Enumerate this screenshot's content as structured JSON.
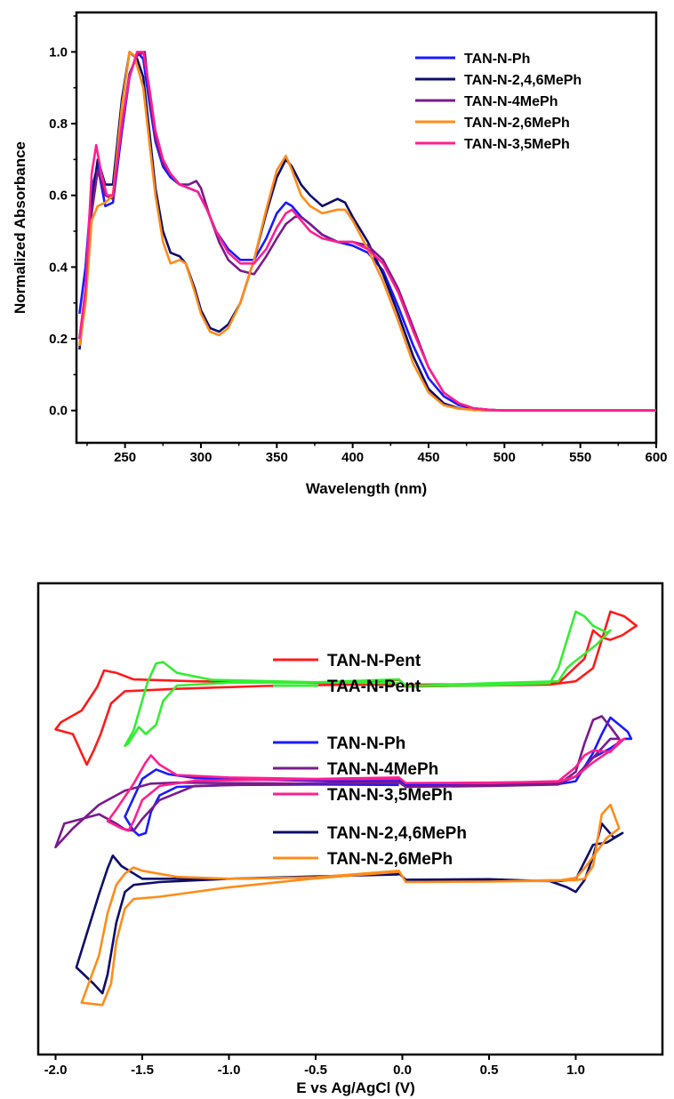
{
  "chart_data": [
    {
      "type": "line",
      "title": "",
      "xlabel": "Wavelength (nm)",
      "ylabel": "Normalized Absorbance",
      "xlim": [
        218,
        600
      ],
      "ylim": [
        -0.09,
        1.11
      ],
      "xticks": [
        250,
        300,
        350,
        400,
        450,
        500,
        550,
        600
      ],
      "xtick_labels": [
        "250",
        "300",
        "350",
        "400",
        "450",
        "500",
        "550",
        "600"
      ],
      "yticks": [
        0.0,
        0.2,
        0.4,
        0.6,
        0.8,
        1.0
      ],
      "ytick_labels": [
        "0.0",
        "0.2",
        "0.4",
        "0.6",
        "0.8",
        "1.0"
      ],
      "grid": false,
      "legend_position": "top-right",
      "series": [
        {
          "name": "TAN-N-Ph",
          "color": "#1a1aff",
          "x": [
            220,
            224,
            228,
            232,
            237,
            242,
            248,
            253,
            258,
            262,
            266,
            270,
            275,
            280,
            286,
            292,
            298,
            304,
            310,
            318,
            326,
            335,
            343,
            350,
            356,
            360,
            366,
            372,
            380,
            390,
            400,
            410,
            420,
            430,
            440,
            450,
            460,
            470,
            480,
            490,
            500,
            520,
            560,
            600
          ],
          "y": [
            0.27,
            0.4,
            0.62,
            0.68,
            0.57,
            0.58,
            0.78,
            0.93,
            1.0,
            0.98,
            0.86,
            0.75,
            0.68,
            0.65,
            0.63,
            0.62,
            0.61,
            0.56,
            0.5,
            0.45,
            0.42,
            0.42,
            0.48,
            0.55,
            0.58,
            0.57,
            0.54,
            0.52,
            0.49,
            0.47,
            0.46,
            0.44,
            0.39,
            0.29,
            0.18,
            0.09,
            0.04,
            0.015,
            0.006,
            0.002,
            0.0,
            0.0,
            0.0,
            0.0
          ]
        },
        {
          "name": "TAN-N-2,4,6MePh",
          "color": "#0d0d6b",
          "x": [
            220,
            224,
            228,
            232,
            237,
            242,
            248,
            253,
            258,
            262,
            266,
            270,
            275,
            280,
            286,
            290,
            296,
            300,
            306,
            312,
            318,
            326,
            335,
            343,
            350,
            356,
            360,
            366,
            372,
            380,
            390,
            395,
            400,
            410,
            420,
            430,
            440,
            450,
            460,
            470,
            480,
            490,
            500,
            520,
            560,
            600
          ],
          "y": [
            0.17,
            0.32,
            0.58,
            0.7,
            0.63,
            0.63,
            0.87,
            1.0,
            0.98,
            0.93,
            0.78,
            0.62,
            0.5,
            0.44,
            0.43,
            0.41,
            0.34,
            0.28,
            0.23,
            0.22,
            0.24,
            0.3,
            0.42,
            0.55,
            0.65,
            0.7,
            0.68,
            0.63,
            0.6,
            0.57,
            0.59,
            0.58,
            0.54,
            0.47,
            0.38,
            0.27,
            0.15,
            0.06,
            0.02,
            0.006,
            0.002,
            0.0,
            0.0,
            0.0,
            0.0,
            0.0
          ]
        },
        {
          "name": "TAN-N-4MePh",
          "color": "#7a1a8c",
          "x": [
            220,
            224,
            228,
            232,
            237,
            242,
            248,
            253,
            258,
            263,
            266,
            270,
            275,
            280,
            286,
            292,
            297,
            300,
            306,
            312,
            318,
            326,
            335,
            343,
            350,
            356,
            362,
            366,
            372,
            380,
            390,
            400,
            410,
            420,
            430,
            440,
            450,
            460,
            470,
            480,
            490,
            500,
            520,
            560,
            600
          ],
          "y": [
            0.2,
            0.33,
            0.55,
            0.67,
            0.6,
            0.59,
            0.8,
            0.94,
            0.99,
            1.0,
            0.88,
            0.76,
            0.69,
            0.66,
            0.63,
            0.63,
            0.64,
            0.62,
            0.54,
            0.47,
            0.42,
            0.39,
            0.38,
            0.43,
            0.48,
            0.52,
            0.54,
            0.54,
            0.52,
            0.49,
            0.47,
            0.47,
            0.46,
            0.42,
            0.34,
            0.23,
            0.12,
            0.05,
            0.02,
            0.006,
            0.002,
            0.0,
            0.0,
            0.0,
            0.0
          ]
        },
        {
          "name": "TAN-N-2,6MePh",
          "color": "#ff8c1a",
          "x": [
            220,
            224,
            228,
            232,
            237,
            242,
            248,
            253,
            256,
            262,
            266,
            270,
            275,
            280,
            286,
            290,
            296,
            300,
            306,
            312,
            318,
            326,
            335,
            343,
            350,
            356,
            360,
            366,
            372,
            380,
            390,
            395,
            400,
            410,
            420,
            430,
            440,
            450,
            460,
            470,
            480,
            490,
            500,
            520,
            560,
            600
          ],
          "y": [
            0.18,
            0.3,
            0.53,
            0.57,
            0.58,
            0.6,
            0.85,
            1.0,
            0.99,
            0.9,
            0.75,
            0.6,
            0.47,
            0.41,
            0.42,
            0.41,
            0.33,
            0.27,
            0.22,
            0.21,
            0.23,
            0.3,
            0.42,
            0.56,
            0.67,
            0.71,
            0.67,
            0.6,
            0.57,
            0.55,
            0.56,
            0.56,
            0.53,
            0.45,
            0.36,
            0.25,
            0.13,
            0.05,
            0.015,
            0.005,
            0.002,
            0.0,
            0.0,
            0.0,
            0.0,
            0.0
          ]
        },
        {
          "name": "TAN-N-3,5MePh",
          "color": "#ff1f8f",
          "x": [
            220,
            224,
            228,
            231,
            234,
            238,
            242,
            248,
            253,
            258,
            262,
            266,
            270,
            275,
            280,
            286,
            292,
            298,
            304,
            310,
            318,
            326,
            335,
            343,
            350,
            356,
            360,
            366,
            372,
            380,
            390,
            400,
            410,
            420,
            430,
            440,
            450,
            460,
            470,
            480,
            490,
            500,
            520,
            560,
            600
          ],
          "y": [
            0.2,
            0.34,
            0.66,
            0.74,
            0.67,
            0.6,
            0.6,
            0.8,
            0.93,
            1.0,
            1.0,
            0.9,
            0.78,
            0.7,
            0.66,
            0.63,
            0.62,
            0.61,
            0.56,
            0.5,
            0.44,
            0.41,
            0.41,
            0.45,
            0.51,
            0.55,
            0.56,
            0.53,
            0.5,
            0.48,
            0.47,
            0.47,
            0.45,
            0.41,
            0.33,
            0.22,
            0.12,
            0.05,
            0.02,
            0.006,
            0.002,
            0.0,
            0.0,
            0.0,
            0.0
          ]
        }
      ]
    },
    {
      "type": "line",
      "title": "",
      "xlabel": "E vs Ag/AgCl (V)",
      "ylabel": "",
      "xlim": [
        -2.1,
        1.5
      ],
      "ylim": [
        0,
        100
      ],
      "xticks": [
        -2.0,
        -1.5,
        -1.0,
        -0.5,
        0.0,
        0.5,
        1.0
      ],
      "xtick_labels": [
        "-2.0",
        "-1.5",
        "-1.0",
        "-0.5",
        "0.0",
        "0.5",
        "1.0"
      ],
      "yticks": [],
      "grid": false,
      "legend_position": "center",
      "legend_groups": [
        [
          "TAN-N-Pent",
          "TAA-N-Pent"
        ],
        [
          "TAN-N-Ph",
          "TAN-N-4MePh",
          "TAN-N-3,5MePh"
        ],
        [
          "TAN-N-2,4,6MePh",
          "TAN-N-2,6MePh"
        ]
      ],
      "series": [
        {
          "name": "TAN-N-Pent",
          "color": "#ff1a1a",
          "x": [
            -0.02,
            -0.3,
            -0.8,
            -1.3,
            -1.6,
            -1.68,
            -1.74,
            -1.78,
            -1.82,
            -1.9,
            -2.0,
            -1.97,
            -1.85,
            -1.76,
            -1.72,
            -1.65,
            -1.55,
            -1.2,
            -0.8,
            -0.4,
            -0.02,
            0.02,
            0.5,
            0.85,
            1.0,
            1.1,
            1.15,
            1.2,
            1.28,
            1.35,
            1.27,
            1.2,
            1.15,
            1.1,
            1.05,
            0.9,
            0.5,
            0.02
          ],
          "y": [
            78.5,
            78.5,
            78.2,
            77.6,
            77.1,
            74.5,
            68,
            64.5,
            61.5,
            68,
            69,
            70.5,
            73,
            78,
            81.5,
            81,
            79.6,
            79.2,
            79.0,
            78.9,
            79.5,
            78.1,
            78.3,
            78.5,
            79.2,
            82,
            88,
            94,
            93,
            91,
            89,
            88,
            88.5,
            90,
            84,
            78.8,
            78.6,
            78.5
          ]
        },
        {
          "name": "TAA-N-Pent",
          "color": "#33ee33",
          "x": [
            -0.02,
            -0.5,
            -1.0,
            -1.3,
            -1.38,
            -1.42,
            -1.48,
            -1.52,
            -1.58,
            -1.6,
            -1.55,
            -1.47,
            -1.42,
            -1.38,
            -1.3,
            -1.1,
            -0.5,
            -0.02,
            0.02,
            0.5,
            0.85,
            0.9,
            0.95,
            1.0,
            1.05,
            1.1,
            1.18,
            1.2,
            1.12,
            1.05,
            0.98,
            0.95,
            0.9,
            0.5,
            0.02
          ],
          "y": [
            78.8,
            79,
            78.9,
            78.3,
            75,
            70,
            68,
            69.5,
            66,
            65.5,
            68.8,
            79,
            83,
            83.3,
            81,
            79.5,
            79,
            79.6,
            78.2,
            78.3,
            78.8,
            82,
            88,
            94,
            93,
            91,
            89.5,
            90,
            87,
            85,
            83,
            82,
            79.2,
            78.8,
            78.2
          ]
        },
        {
          "name": "TAN-N-Ph",
          "color": "#1a1aff",
          "x": [
            -0.02,
            -0.5,
            -1.0,
            -1.3,
            -1.4,
            -1.45,
            -1.48,
            -1.52,
            -1.55,
            -1.6,
            -1.5,
            -1.42,
            -1.35,
            -1.2,
            -0.8,
            -0.4,
            -0.02,
            0.02,
            0.5,
            0.9,
            1.0,
            1.1,
            1.15,
            1.2,
            1.25,
            1.3,
            1.32,
            1.28,
            1.2,
            1.1,
            1.0,
            0.9,
            0.5,
            0.02
          ],
          "y": [
            57.2,
            57.3,
            57.2,
            56.8,
            55,
            51.5,
            47,
            46.5,
            47.5,
            50.5,
            58.5,
            60.5,
            59.5,
            58.7,
            58.3,
            58,
            58.2,
            57.2,
            57.3,
            57.4,
            58,
            64,
            68,
            71.5,
            70,
            68.5,
            67,
            67,
            65,
            63,
            59,
            57.6,
            57.3,
            57.2
          ]
        },
        {
          "name": "TAN-N-4MePh",
          "color": "#7a1a8c",
          "x": [
            -0.02,
            -0.6,
            -1.2,
            -1.4,
            -1.5,
            -1.55,
            -1.6,
            -1.65,
            -1.75,
            -1.95,
            -2.0,
            -1.9,
            -1.75,
            -1.6,
            -1.45,
            -1.3,
            -1.0,
            -0.5,
            -0.02,
            0.02,
            0.5,
            0.9,
            1.0,
            1.05,
            1.1,
            1.15,
            1.2,
            1.25,
            1.2,
            1.1,
            1.0,
            0.9,
            0.5,
            0.02
          ],
          "y": [
            57.6,
            57.5,
            57,
            54,
            50,
            47.5,
            47.8,
            49,
            51,
            49,
            44,
            48,
            53,
            56,
            57.5,
            57.7,
            57.6,
            57.5,
            57.8,
            56.8,
            57,
            57.3,
            60,
            66,
            71,
            71.8,
            69.5,
            67,
            67,
            63,
            59,
            57.5,
            57.2,
            56.8
          ]
        },
        {
          "name": "TAN-N-3,5MePh",
          "color": "#ff1f8f",
          "x": [
            -0.02,
            -0.6,
            -1.2,
            -1.4,
            -1.5,
            -1.55,
            -1.58,
            -1.62,
            -1.7,
            -1.65,
            -1.55,
            -1.48,
            -1.45,
            -1.4,
            -1.3,
            -1.0,
            -0.5,
            -0.02,
            0.02,
            0.5,
            0.9,
            1.0,
            1.05,
            1.1,
            1.2,
            1.25,
            1.28,
            1.22,
            1.1,
            1.0,
            0.9,
            0.5,
            0.02
          ],
          "y": [
            58.5,
            58.4,
            58.1,
            57,
            54,
            49.5,
            47.5,
            48,
            49.5,
            52,
            57.5,
            62,
            63.5,
            61.5,
            59.3,
            58.8,
            58.5,
            58.8,
            57.6,
            57.6,
            58,
            61,
            63.5,
            64.5,
            64.2,
            66.5,
            67,
            65,
            62,
            59,
            57.9,
            57.7,
            57.6
          ]
        },
        {
          "name": "TAN-N-2,4,6MePh",
          "color": "#0d0d6b",
          "x": [
            -0.02,
            -0.5,
            -1.0,
            -1.4,
            -1.55,
            -1.6,
            -1.65,
            -1.7,
            -1.73,
            -1.78,
            -1.88,
            -1.75,
            -1.7,
            -1.67,
            -1.62,
            -1.5,
            -1.0,
            -0.5,
            -0.02,
            0.02,
            0.5,
            0.85,
            0.95,
            1.0,
            1.05,
            1.1,
            1.15,
            1.22,
            1.27,
            1.18,
            1.1,
            1.0,
            0.9,
            0.5,
            0.02
          ],
          "y": [
            38.2,
            37.8,
            37.3,
            36.6,
            36,
            34.5,
            28,
            17,
            13,
            15,
            18.5,
            34,
            39.5,
            42.2,
            40,
            37.3,
            37.3,
            37.6,
            38.5,
            37.1,
            37.2,
            36.8,
            35.5,
            34.5,
            37,
            42,
            49,
            46,
            47,
            45,
            44.5,
            37.2,
            36.8,
            36.9,
            37.1
          ]
        },
        {
          "name": "TAN-N-2,6MePh",
          "color": "#ff8c1a",
          "x": [
            -0.02,
            -0.5,
            -1.0,
            -1.4,
            -1.55,
            -1.6,
            -1.65,
            -1.68,
            -1.73,
            -1.85,
            -1.75,
            -1.7,
            -1.65,
            -1.6,
            -1.55,
            -1.5,
            -1.3,
            -1.0,
            -0.5,
            -0.02,
            0.02,
            0.5,
            0.85,
            0.95,
            1.0,
            1.05,
            1.1,
            1.15,
            1.2,
            1.25,
            1.18,
            1.1,
            1.05,
            1.0,
            0.9,
            0.5,
            0.02
          ],
          "y": [
            38.8,
            37.4,
            35.5,
            33.5,
            33,
            31,
            24,
            15,
            10.5,
            11,
            21,
            30,
            36,
            38.4,
            39.7,
            39,
            37.7,
            37.3,
            37.6,
            39,
            36.6,
            36.7,
            37,
            37,
            37,
            37.3,
            40,
            51,
            53,
            48,
            46,
            42,
            39.5,
            37.5,
            36.9,
            36.7,
            36.6
          ]
        }
      ]
    }
  ]
}
